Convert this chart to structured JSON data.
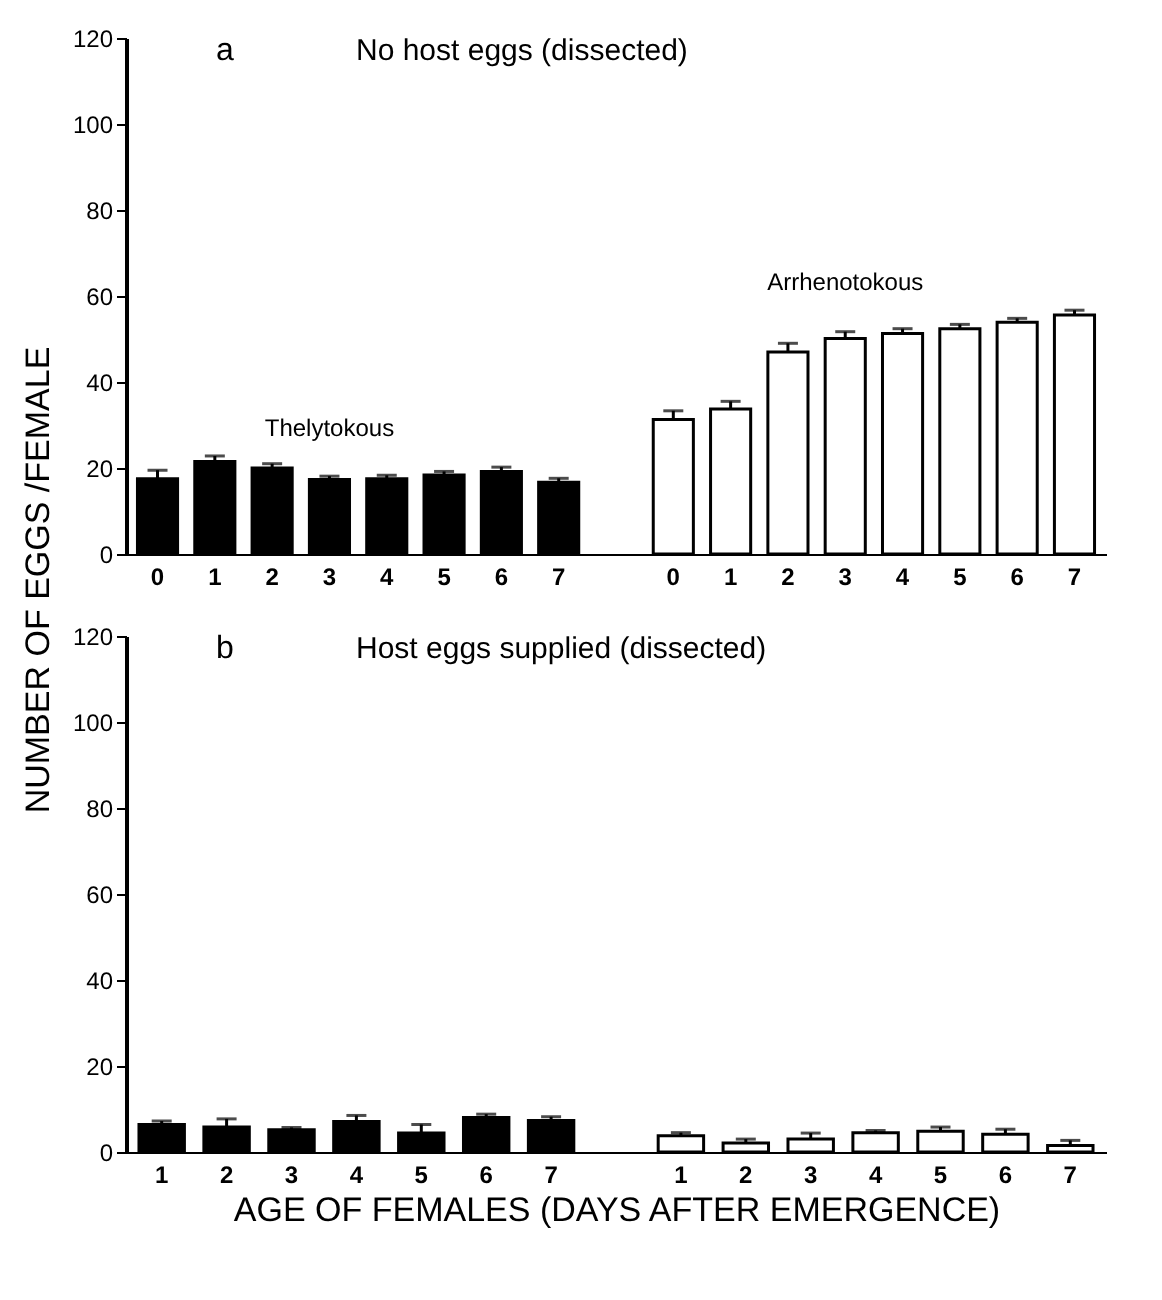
{
  "chart_data": [
    {
      "type": "bar",
      "title": "No host eggs (dissected)",
      "annotations": [
        "a"
      ],
      "ylabel": "NUMBER OF EGGS /FEMALE",
      "categories": [
        "0",
        "1",
        "2",
        "3",
        "4",
        "5",
        "6",
        "7",
        "0",
        "1",
        "2",
        "3",
        "4",
        "5",
        "6",
        "7"
      ],
      "series": [
        {
          "name": "Thelytokous",
          "color": "#000000",
          "values": [
            17.5,
            21.5,
            20,
            17.3,
            17.5,
            18.4,
            19.2,
            16.7,
            null,
            null,
            null,
            null,
            null,
            null,
            null,
            null
          ],
          "errors": [
            2,
            1.3,
            1,
            0.8,
            0.8,
            0.8,
            1,
            0.9,
            null,
            null,
            null,
            null,
            null,
            null,
            null,
            null
          ]
        },
        {
          "name": "Arrhenotokous",
          "color": "#ffffff",
          "values": [
            null,
            null,
            null,
            null,
            null,
            null,
            null,
            null,
            31.3,
            33.7,
            47,
            50.1,
            51.3,
            52.4,
            53.9,
            55.6
          ],
          "errors": [
            null,
            null,
            null,
            null,
            null,
            null,
            null,
            null,
            2,
            1.8,
            2,
            1.6,
            1.1,
            1,
            0.9,
            1.1
          ]
        }
      ],
      "ylim": [
        0,
        120
      ],
      "yticks": [
        0,
        20,
        40,
        60,
        80,
        100,
        120
      ],
      "grid": false
    },
    {
      "type": "bar",
      "title": "Host eggs supplied (dissected)",
      "annotations": [
        "b"
      ],
      "xlabel": "AGE OF FEMALES (DAYS AFTER EMERGENCE)",
      "categories": [
        "1",
        "2",
        "3",
        "4",
        "5",
        "6",
        "7",
        "1",
        "2",
        "3",
        "4",
        "5",
        "6",
        "7"
      ],
      "series": [
        {
          "color": "#000000",
          "values": [
            6.4,
            5.8,
            5.2,
            7.1,
            4.4,
            8,
            7.3,
            null,
            null,
            null,
            null,
            null,
            null,
            null
          ],
          "errors": [
            0.8,
            1.9,
            0.5,
            1.4,
            2,
            0.8,
            0.9,
            null,
            null,
            null,
            null,
            null,
            null,
            null
          ]
        },
        {
          "color": "#ffffff",
          "values": [
            null,
            null,
            null,
            null,
            null,
            null,
            null,
            3.8,
            2.1,
            3,
            4.5,
            4.8,
            4.1,
            1.5
          ],
          "errors": [
            null,
            null,
            null,
            null,
            null,
            null,
            null,
            0.7,
            0.9,
            1.4,
            0.5,
            1,
            1.2,
            1.2
          ]
        }
      ],
      "ylim": [
        0,
        120
      ],
      "yticks": [
        0,
        20,
        40,
        60,
        80,
        100,
        120
      ],
      "grid": false
    }
  ]
}
